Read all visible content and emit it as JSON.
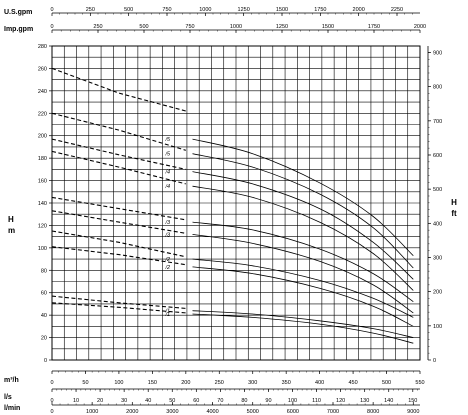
{
  "chart_data": {
    "type": "line",
    "top_scales": [
      {
        "label": "U.S.gpm",
        "ticks": [
          "0",
          "250",
          "500",
          "750",
          "1000",
          "1250",
          "1500",
          "1750",
          "2000",
          "2250"
        ],
        "max": 2400
      },
      {
        "label": "Imp.gpm",
        "ticks": [
          "0",
          "250",
          "500",
          "750",
          "1000",
          "1250",
          "1500",
          "1750",
          "2000"
        ],
        "max": 2000
      }
    ],
    "bottom_scales": [
      {
        "label": "m³/h",
        "ticks": [
          "0",
          "50",
          "100",
          "150",
          "200",
          "250",
          "300",
          "350",
          "400",
          "450",
          "500",
          "550"
        ],
        "max": 550
      },
      {
        "label": "l/s",
        "ticks": [
          "0",
          "10",
          "20",
          "30",
          "40",
          "50",
          "60",
          "70",
          "80",
          "90",
          "100",
          "110",
          "120",
          "130",
          "140",
          "150"
        ],
        "max": 153
      },
      {
        "label": "l/min",
        "ticks": [
          "0",
          "1000",
          "2000",
          "3000",
          "4000",
          "5000",
          "6000",
          "7000",
          "8000",
          "9000"
        ],
        "max": 9167
      }
    ],
    "left_axis": {
      "label_line1": "H",
      "label_line2": "m",
      "ticks": [
        "0",
        "20",
        "40",
        "60",
        "80",
        "100",
        "120",
        "140",
        "160",
        "180",
        "200",
        "220",
        "240",
        "260",
        "280"
      ],
      "ylim": [
        0,
        280
      ]
    },
    "right_axis": {
      "label_line1": "H",
      "label_line2": "ft",
      "ticks": [
        "0",
        "100",
        "200",
        "300",
        "400",
        "500",
        "600",
        "700",
        "800",
        "900"
      ],
      "max": 919
    },
    "xlim": [
      0,
      550
    ],
    "grid": true,
    "series": [
      {
        "name": "/1",
        "dashed": [
          [
            0,
            51
          ],
          [
            100,
            47
          ],
          [
            200,
            42
          ]
        ],
        "solid": [
          [
            210,
            41
          ],
          [
            300,
            38
          ],
          [
            400,
            32
          ],
          [
            480,
            24
          ],
          [
            540,
            15
          ]
        ]
      },
      {
        "name": "/1",
        "dashed": [
          [
            0,
            57
          ],
          [
            100,
            51
          ],
          [
            200,
            46
          ]
        ],
        "solid": [
          [
            210,
            44
          ],
          [
            300,
            41
          ],
          [
            400,
            35
          ],
          [
            480,
            28
          ],
          [
            540,
            20
          ]
        ]
      },
      {
        "name": "/2",
        "dashed": [
          [
            0,
            101
          ],
          [
            100,
            94
          ],
          [
            200,
            85
          ]
        ],
        "solid": [
          [
            210,
            83
          ],
          [
            300,
            77
          ],
          [
            400,
            64
          ],
          [
            480,
            48
          ],
          [
            540,
            30
          ]
        ]
      },
      {
        "name": "/2",
        "dashed": [
          [
            0,
            115
          ],
          [
            100,
            105
          ],
          [
            200,
            92
          ]
        ],
        "solid": [
          [
            210,
            90
          ],
          [
            300,
            84
          ],
          [
            400,
            71
          ],
          [
            480,
            55
          ],
          [
            540,
            38
          ]
        ]
      },
      {
        "name": "/3",
        "dashed": [
          [
            0,
            133
          ],
          [
            100,
            123
          ],
          [
            200,
            113
          ]
        ],
        "solid": [
          [
            210,
            112
          ],
          [
            300,
            104
          ],
          [
            400,
            88
          ],
          [
            480,
            67
          ],
          [
            540,
            42
          ]
        ]
      },
      {
        "name": "/3",
        "dashed": [
          [
            0,
            145
          ],
          [
            100,
            135
          ],
          [
            200,
            125
          ]
        ],
        "solid": [
          [
            210,
            123
          ],
          [
            300,
            116
          ],
          [
            400,
            99
          ],
          [
            480,
            77
          ],
          [
            540,
            52
          ]
        ]
      },
      {
        "name": "/4",
        "dashed": [
          [
            0,
            186
          ],
          [
            100,
            172
          ],
          [
            200,
            157
          ]
        ],
        "solid": [
          [
            210,
            155
          ],
          [
            300,
            145
          ],
          [
            400,
            123
          ],
          [
            480,
            95
          ],
          [
            540,
            62
          ]
        ]
      },
      {
        "name": "/4",
        "dashed": [
          [
            0,
            197
          ],
          [
            100,
            183
          ],
          [
            200,
            170
          ]
        ],
        "solid": [
          [
            210,
            168
          ],
          [
            300,
            157
          ],
          [
            400,
            135
          ],
          [
            480,
            105
          ],
          [
            540,
            72
          ]
        ]
      },
      {
        "name": "/5",
        "dashed": [
          [
            0,
            220
          ],
          [
            100,
            205
          ],
          [
            200,
            187
          ]
        ],
        "solid": [
          [
            210,
            184
          ],
          [
            300,
            172
          ],
          [
            400,
            148
          ],
          [
            480,
            118
          ],
          [
            540,
            82
          ]
        ]
      },
      {
        "name": "/5",
        "dashed": [
          [
            0,
            260
          ],
          [
            100,
            238
          ],
          [
            200,
            222
          ]
        ],
        "solid": [
          [
            210,
            197
          ],
          [
            300,
            184
          ],
          [
            400,
            158
          ],
          [
            480,
            128
          ],
          [
            540,
            93
          ]
        ]
      }
    ]
  }
}
